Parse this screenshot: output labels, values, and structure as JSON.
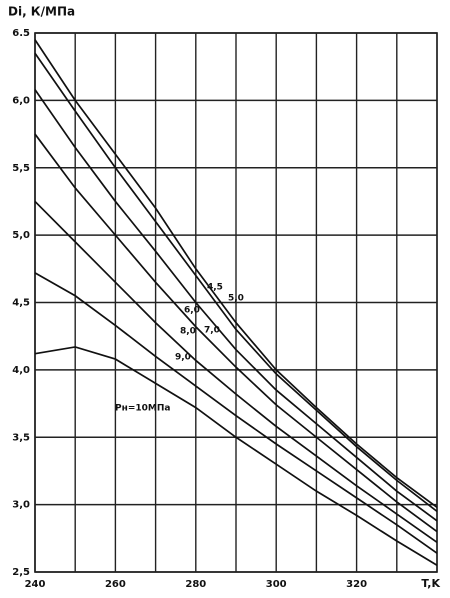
{
  "chart_data": {
    "type": "line",
    "title": "Di, К/МПа",
    "x_label": "T,K",
    "x": [
      240,
      250,
      260,
      270,
      280,
      290,
      300,
      310,
      320,
      330,
      340
    ],
    "xlim": [
      240,
      340
    ],
    "xticks": [
      240,
      260,
      280,
      300,
      320
    ],
    "xminor": [
      250,
      270,
      290,
      310,
      330
    ],
    "ylim": [
      2.5,
      6.5
    ],
    "yticks": [
      {
        "value": 2.5,
        "label": "2,5"
      },
      {
        "value": 3,
        "label": "3,0"
      },
      {
        "value": 3.5,
        "label": "3,5"
      },
      {
        "value": 4,
        "label": "4,0"
      },
      {
        "value": 4.5,
        "label": "4,5"
      },
      {
        "value": 5,
        "label": "5,0"
      },
      {
        "value": 5.5,
        "label": "5,5"
      },
      {
        "value": 6,
        "label": "6,0"
      },
      {
        "value": 6.5,
        "label": "6.5"
      }
    ],
    "grid": true,
    "series": [
      {
        "name": "4,5",
        "color": "#111111",
        "values": [
          6.45,
          6.0,
          5.6,
          5.2,
          4.75,
          4.35,
          4.0,
          3.72,
          3.45,
          3.2,
          2.98
        ]
      },
      {
        "name": "5,0",
        "color": "#111111",
        "values": [
          6.35,
          5.92,
          5.5,
          5.1,
          4.7,
          4.3,
          3.97,
          3.7,
          3.43,
          3.18,
          2.95
        ]
      },
      {
        "name": "6,0",
        "color": "#111111",
        "values": [
          6.08,
          5.65,
          5.25,
          4.88,
          4.5,
          4.15,
          3.85,
          3.6,
          3.35,
          3.1,
          2.88
        ]
      },
      {
        "name": "7,0",
        "color": "#111111",
        "values": [
          5.75,
          5.35,
          5.0,
          4.65,
          4.32,
          4.02,
          3.74,
          3.5,
          3.26,
          3.02,
          2.8
        ]
      },
      {
        "name": "8,0",
        "color": "#111111",
        "values": [
          5.25,
          4.95,
          4.65,
          4.35,
          4.07,
          3.82,
          3.58,
          3.36,
          3.14,
          2.93,
          2.72
        ]
      },
      {
        "name": "9,0",
        "color": "#111111",
        "values": [
          4.72,
          4.55,
          4.33,
          4.1,
          3.88,
          3.66,
          3.45,
          3.25,
          3.05,
          2.85,
          2.64
        ]
      },
      {
        "name": "Pн=10МПа",
        "color": "#111111",
        "values": [
          4.12,
          4.17,
          4.08,
          3.9,
          3.72,
          3.5,
          3.3,
          3.1,
          2.92,
          2.73,
          2.55
        ]
      }
    ]
  }
}
